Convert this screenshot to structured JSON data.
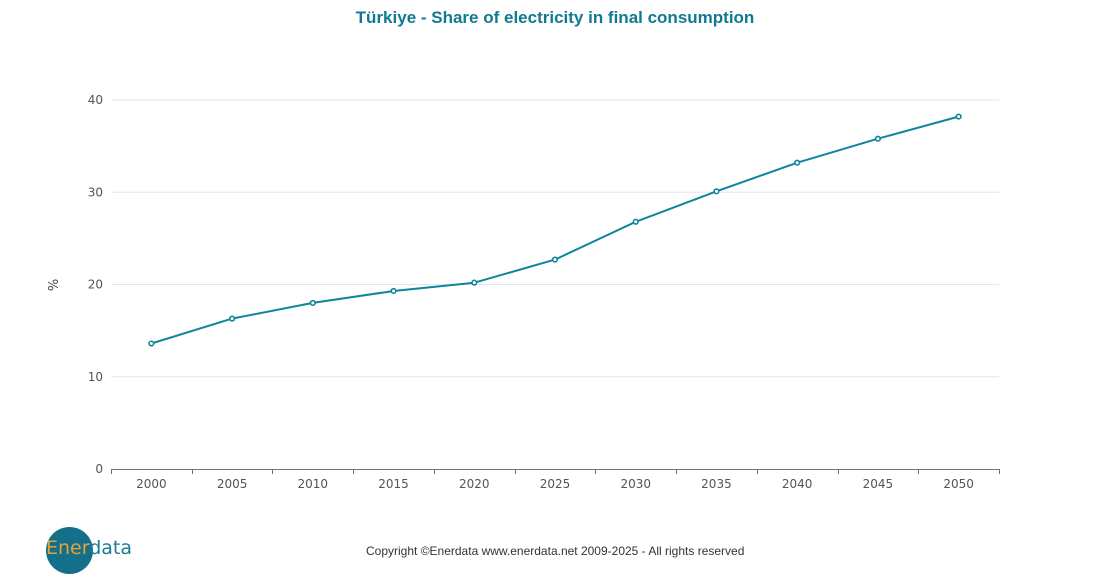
{
  "chart_data": {
    "type": "line",
    "title": "Türkiye - Share of electricity in final consumption",
    "xlabel": "",
    "ylabel": "%",
    "x": [
      2000,
      2005,
      2010,
      2015,
      2020,
      2025,
      2030,
      2035,
      2040,
      2045,
      2050
    ],
    "categories": [
      "2000",
      "2005",
      "2010",
      "2015",
      "2020",
      "2025",
      "2030",
      "2035",
      "2040",
      "2045",
      "2050"
    ],
    "series": [
      {
        "name": "Share of electricity in final consumption",
        "color": "#0f859c",
        "values": [
          13.6,
          16.3,
          18.0,
          19.3,
          20.2,
          22.7,
          26.8,
          30.1,
          33.2,
          35.8,
          38.2
        ]
      }
    ],
    "yticks": [
      0,
      10,
      20,
      30,
      40
    ],
    "ylim": [
      0,
      40
    ],
    "grid": true,
    "legend": "none"
  },
  "footer": {
    "logo_part1": "Ener",
    "logo_part2": "data",
    "copyright": "Copyright ©Enerdata www.enerdata.net 2009-2025 - All rights reserved"
  }
}
